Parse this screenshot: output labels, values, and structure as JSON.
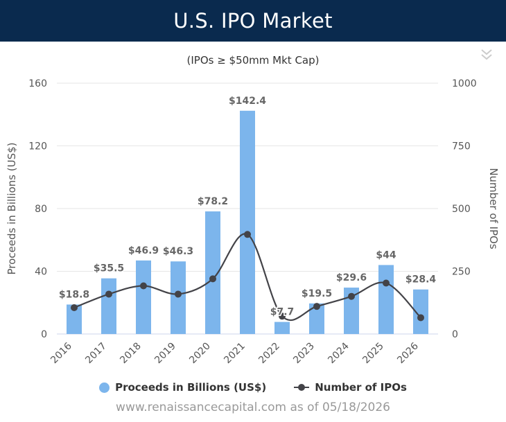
{
  "header": {
    "title": "U.S. IPO Market"
  },
  "menu": {
    "icon": "double-chevron-down-icon",
    "glyph": "»"
  },
  "chart_data": {
    "type": "bar+line",
    "subtitle": "(IPOs ≥ $50mm Mkt Cap)",
    "categories": [
      "2016",
      "2017",
      "2018",
      "2019",
      "2020",
      "2021",
      "2022",
      "2023",
      "2024",
      "2025",
      "2026"
    ],
    "series": [
      {
        "name": "Proceeds in Billions (US$)",
        "type": "bar",
        "axis": "left",
        "values": [
          18.8,
          35.5,
          46.9,
          46.3,
          78.2,
          142.4,
          7.7,
          19.5,
          29.6,
          44,
          28.4
        ],
        "labels": [
          "$18.8",
          "$35.5",
          "$46.9",
          "$46.3",
          "$78.2",
          "$142.4",
          "$7.7",
          "$19.5",
          "$29.6",
          "$44",
          "$28.4"
        ],
        "color": "#7cb5ec"
      },
      {
        "name": "Number of IPOs",
        "type": "line",
        "axis": "right",
        "values": [
          105,
          159,
          192,
          159,
          220,
          397,
          71,
          110,
          150,
          203,
          65
        ],
        "color": "#434348"
      }
    ],
    "y_left": {
      "label": "Proceeds in Billions (US$)",
      "min": 0,
      "max": 160,
      "ticks": [
        0,
        40,
        80,
        120,
        160
      ],
      "tick_labels": [
        "0",
        "40",
        "80",
        "120",
        "160"
      ]
    },
    "y_right": {
      "label": "Number of IPOs",
      "min": 0,
      "max": 1000,
      "ticks": [
        0,
        250,
        500,
        750,
        1000
      ],
      "tick_labels": [
        "0",
        "250",
        "500",
        "750",
        "1000"
      ]
    },
    "grid": true,
    "legend_position": "bottom"
  },
  "legend": {
    "bars_label": "Proceeds in Billions (US$)",
    "line_label": "Number of IPOs"
  },
  "footer": {
    "source": "www.renaissancecapital.com as of 05/18/2026"
  }
}
